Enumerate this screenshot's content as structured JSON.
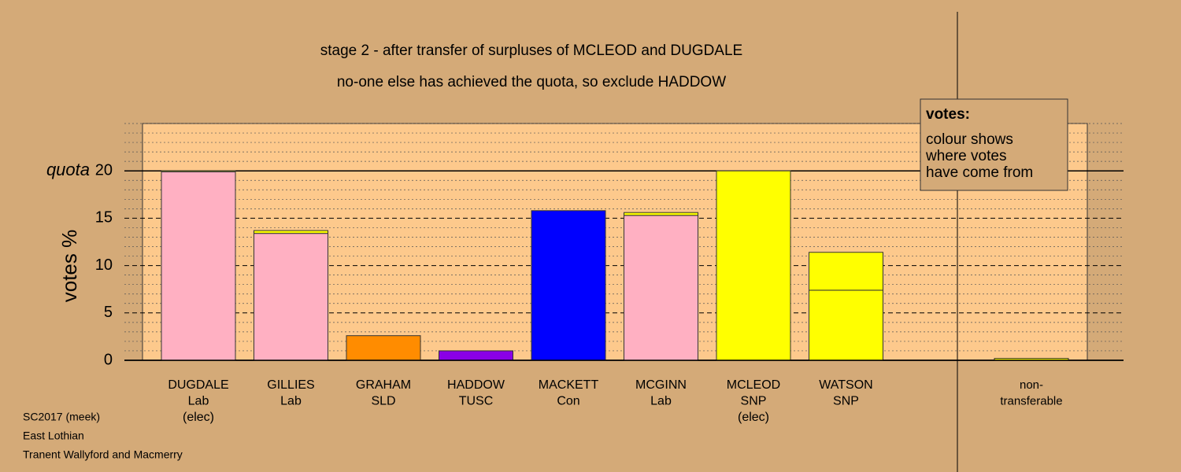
{
  "chart_data": {
    "type": "stacked-bar",
    "title": [
      "stage 2 - after transfer of surpluses of MCLEOD and DUGDALE",
      "no-one else has achieved the quota, so exclude HADDOW"
    ],
    "y_label": "votes %",
    "quota_label": "quota",
    "quota": 20,
    "ylim": [
      0,
      25
    ],
    "yticks": [
      0,
      5,
      10,
      15,
      20
    ],
    "minor_grid_step": 1,
    "categories": [
      [
        "DUGDALE",
        "Lab",
        "(elec)"
      ],
      [
        "GILLIES",
        "Lab"
      ],
      [
        "GRAHAM",
        "SLD"
      ],
      [
        "HADDOW",
        "TUSC"
      ],
      [
        "MACKETT",
        "Con"
      ],
      [
        "MCGINN",
        "Lab"
      ],
      [
        "MCLEOD",
        "SNP",
        "(elec)"
      ],
      [
        "WATSON",
        "SNP"
      ],
      null,
      [
        "non-",
        "transferable"
      ]
    ],
    "bars": [
      [
        {
          "value": 19.9,
          "color": "#ffb0c2"
        },
        {
          "value": 0.1,
          "color": "#ffff00"
        }
      ],
      [
        {
          "value": 13.4,
          "color": "#ffb0c2"
        },
        {
          "value": 0.3,
          "color": "#ffff00"
        }
      ],
      [
        {
          "value": 2.6,
          "color": "#ff8c00"
        }
      ],
      [
        {
          "value": 1.0,
          "color": "#8a00e6"
        }
      ],
      [
        {
          "value": 15.8,
          "color": "#0000ff"
        }
      ],
      [
        {
          "value": 15.3,
          "color": "#ffb0c2"
        },
        {
          "value": 0.3,
          "color": "#ffff00"
        }
      ],
      [
        {
          "value": 20,
          "color": "#ffff00"
        }
      ],
      [
        {
          "value": 7.4,
          "color": "#ffff00"
        },
        {
          "value": 4.0,
          "color": "#ffff00"
        }
      ],
      [],
      [
        {
          "value": 0.2,
          "color": "#ffff00"
        }
      ]
    ],
    "legend": {
      "heading": "votes:",
      "lines": [
        "colour shows",
        "where votes",
        "have come from"
      ]
    },
    "footer": [
      "SC2017 (meek)",
      "East Lothian",
      "Tranent Wallyford and Macmerry"
    ]
  }
}
